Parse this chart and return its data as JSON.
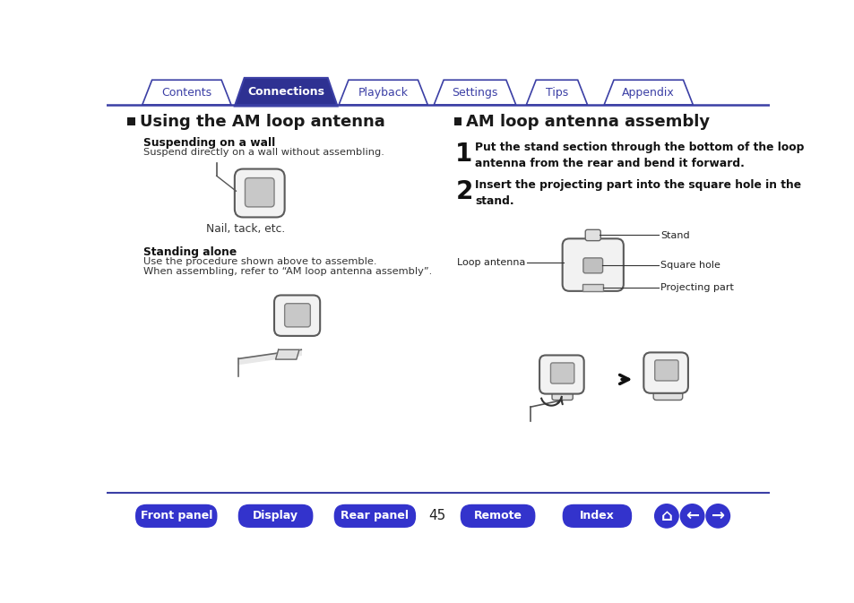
{
  "bg_color": "#ffffff",
  "tab_bg_active": "#2e3192",
  "tab_bg_inactive": "#ffffff",
  "tab_border_color": "#3b3fa5",
  "tab_text_active": "#ffffff",
  "tab_text_inactive": "#3b3fa5",
  "tabs": [
    "Contents",
    "Connections",
    "Playback",
    "Settings",
    "Tips",
    "Appendix"
  ],
  "active_tab": 1,
  "bottom_btn_color": "#3333cc",
  "bottom_btn_text": "#ffffff",
  "bottom_btns": [
    "Front panel",
    "Display",
    "Rear panel",
    "Remote",
    "Index"
  ],
  "page_number": "45",
  "left_section_title": "Using the AM loop antenna",
  "left_sub1_title": "Suspending on a wall",
  "left_sub1_text1": "Suspend directly on a wall without assembling.",
  "left_sub1_caption": "Nail, tack, etc.",
  "left_sub2_title": "Standing alone",
  "left_sub2_text1": "Use the procedure shown above to assemble.",
  "left_sub2_text2": "When assembling, refer to “AM loop antenna assembly”.",
  "right_section_title": "AM loop antenna assembly",
  "right_step1_num": "1",
  "right_step1_text": "Put the stand section through the bottom of the loop\nantenna from the rear and bend it forward.",
  "right_step2_num": "2",
  "right_step2_text": "Insert the projecting part into the square hole in the\nstand.",
  "label_stand": "Stand",
  "label_square_hole": "Square hole",
  "label_loop_antenna": "Loop antenna",
  "label_projecting_part": "Projecting part",
  "divider_color": "#3b3fa5",
  "text_color": "#333333",
  "title_color": "#1a1a1a"
}
